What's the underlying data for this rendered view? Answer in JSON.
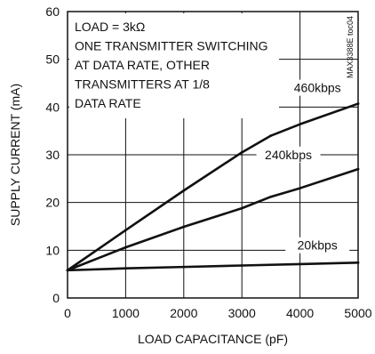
{
  "chart_data": {
    "type": "line",
    "xlabel": "LOAD CAPACITANCE (pF)",
    "ylabel": "SUPPLY CURRENT (mA)",
    "xlim": [
      0,
      5000
    ],
    "ylim": [
      0,
      60
    ],
    "xticks": [
      0,
      1000,
      2000,
      3000,
      4000,
      5000
    ],
    "yticks": [
      0,
      10,
      20,
      30,
      40,
      50,
      60
    ],
    "grid": true,
    "annotation_lines": [
      "LOAD = 3kΩ",
      "ONE TRANSMITTER SWITCHING",
      "AT DATA RATE, OTHER",
      "TRANSMITTERS AT 1/8",
      "DATA RATE"
    ],
    "part_tag": "MAX3388E toc04",
    "series": [
      {
        "name": "460kbps",
        "x": [
          0,
          1000,
          2000,
          3000,
          3500,
          4000,
          5000
        ],
        "y": [
          5.8,
          14.2,
          22.5,
          30.5,
          34.0,
          36.4,
          40.7
        ]
      },
      {
        "name": "240kbps",
        "x": [
          0,
          1000,
          2000,
          3000,
          3500,
          4000,
          5000
        ],
        "y": [
          5.8,
          10.6,
          14.9,
          18.8,
          21.2,
          23.0,
          27.0
        ]
      },
      {
        "name": "20kbps",
        "x": [
          0,
          1000,
          2000,
          3000,
          4000,
          5000
        ],
        "y": [
          5.8,
          6.2,
          6.5,
          6.8,
          7.1,
          7.4
        ]
      }
    ]
  }
}
